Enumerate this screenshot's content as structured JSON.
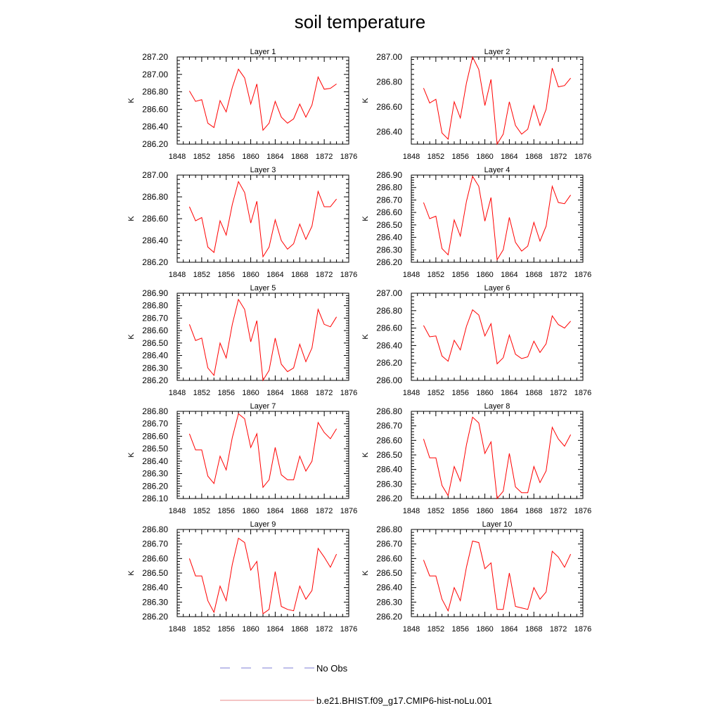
{
  "figure": {
    "title": "soil temperature",
    "legend": {
      "placement": "bottom-center",
      "entries": [
        {
          "label": "No Obs",
          "style": "dashed",
          "color": "#7f7fd6"
        },
        {
          "label": "b.e21.BHIST.f09_g17.CMIP6-hist-noLu.001",
          "style": "solid",
          "color": "#e88a8a"
        }
      ]
    }
  },
  "chart_data": [
    {
      "type": "line",
      "title": "Layer 1",
      "ylabel": "K",
      "xlim": [
        1848,
        1876
      ],
      "ylim": [
        286.2,
        287.2
      ],
      "xticks": [
        "1848",
        "1852",
        "1856",
        "1860",
        "1864",
        "1868",
        "1872",
        "1876"
      ],
      "yticks": [
        "286.20",
        "286.40",
        "286.60",
        "286.80",
        "287.00",
        "287.20"
      ],
      "series": [
        {
          "color": "#ff0000",
          "x": [
            1850,
            1851,
            1852,
            1853,
            1854,
            1855,
            1856,
            1857,
            1858,
            1859,
            1860,
            1861,
            1862,
            1863,
            1864,
            1865,
            1866,
            1867,
            1868,
            1869,
            1870,
            1871,
            1872,
            1873,
            1874
          ],
          "values": [
            286.81,
            286.69,
            286.71,
            286.44,
            286.39,
            286.7,
            286.57,
            286.85,
            287.06,
            286.96,
            286.66,
            286.89,
            286.36,
            286.44,
            286.69,
            286.51,
            286.44,
            286.49,
            286.66,
            286.51,
            286.65,
            286.97,
            286.83,
            286.84,
            286.89
          ]
        }
      ]
    },
    {
      "type": "line",
      "title": "Layer 2",
      "ylabel": "K",
      "xlim": [
        1848,
        1876
      ],
      "ylim": [
        286.3,
        287.0
      ],
      "xticks": [
        "1848",
        "1852",
        "1856",
        "1860",
        "1864",
        "1868",
        "1872",
        "1876"
      ],
      "yticks": [
        "286.40",
        "286.60",
        "286.80",
        "287.00"
      ],
      "series": [
        {
          "color": "#ff0000",
          "x": [
            1850,
            1851,
            1852,
            1853,
            1854,
            1855,
            1856,
            1857,
            1858,
            1859,
            1860,
            1861,
            1862,
            1863,
            1864,
            1865,
            1866,
            1867,
            1868,
            1869,
            1870,
            1871,
            1872,
            1873,
            1874
          ],
          "values": [
            286.75,
            286.63,
            286.66,
            286.39,
            286.34,
            286.64,
            286.51,
            286.79,
            287.0,
            286.9,
            286.61,
            286.82,
            286.3,
            286.38,
            286.64,
            286.45,
            286.38,
            286.42,
            286.61,
            286.45,
            286.58,
            286.91,
            286.76,
            286.77,
            286.83
          ]
        }
      ]
    },
    {
      "type": "line",
      "title": "Layer 3",
      "ylabel": "K",
      "xlim": [
        1848,
        1876
      ],
      "ylim": [
        286.2,
        287.0
      ],
      "xticks": [
        "1848",
        "1852",
        "1856",
        "1860",
        "1864",
        "1868",
        "1872",
        "1876"
      ],
      "yticks": [
        "286.20",
        "286.40",
        "286.60",
        "286.80",
        "287.00"
      ],
      "series": [
        {
          "color": "#ff0000",
          "x": [
            1850,
            1851,
            1852,
            1853,
            1854,
            1855,
            1856,
            1857,
            1858,
            1859,
            1860,
            1861,
            1862,
            1863,
            1864,
            1865,
            1866,
            1867,
            1868,
            1869,
            1870,
            1871,
            1872,
            1873,
            1874
          ],
          "values": [
            286.71,
            286.58,
            286.61,
            286.34,
            286.29,
            286.58,
            286.45,
            286.73,
            286.94,
            286.84,
            286.56,
            286.76,
            286.25,
            286.34,
            286.59,
            286.4,
            286.32,
            286.37,
            286.55,
            286.41,
            286.53,
            286.85,
            286.71,
            286.71,
            286.78
          ]
        }
      ]
    },
    {
      "type": "line",
      "title": "Layer 4",
      "ylabel": "K",
      "xlim": [
        1848,
        1876
      ],
      "ylim": [
        286.2,
        286.9
      ],
      "xticks": [
        "1848",
        "1852",
        "1856",
        "1860",
        "1864",
        "1868",
        "1872",
        "1876"
      ],
      "yticks": [
        "286.20",
        "286.30",
        "286.40",
        "286.50",
        "286.60",
        "286.70",
        "286.80",
        "286.90"
      ],
      "series": [
        {
          "color": "#ff0000",
          "x": [
            1850,
            1851,
            1852,
            1853,
            1854,
            1855,
            1856,
            1857,
            1858,
            1859,
            1860,
            1861,
            1862,
            1863,
            1864,
            1865,
            1866,
            1867,
            1868,
            1869,
            1870,
            1871,
            1872,
            1873,
            1874
          ],
          "values": [
            286.68,
            286.55,
            286.57,
            286.31,
            286.26,
            286.54,
            286.41,
            286.69,
            286.89,
            286.81,
            286.53,
            286.72,
            286.22,
            286.3,
            286.56,
            286.36,
            286.29,
            286.33,
            286.52,
            286.37,
            286.49,
            286.81,
            286.68,
            286.67,
            286.74
          ]
        }
      ]
    },
    {
      "type": "line",
      "title": "Layer 5",
      "ylabel": "K",
      "xlim": [
        1848,
        1876
      ],
      "ylim": [
        286.2,
        286.9
      ],
      "xticks": [
        "1848",
        "1852",
        "1856",
        "1860",
        "1864",
        "1868",
        "1872",
        "1876"
      ],
      "yticks": [
        "286.20",
        "286.30",
        "286.40",
        "286.50",
        "286.60",
        "286.70",
        "286.80",
        "286.90"
      ],
      "series": [
        {
          "color": "#ff0000",
          "x": [
            1850,
            1851,
            1852,
            1853,
            1854,
            1855,
            1856,
            1857,
            1858,
            1859,
            1860,
            1861,
            1862,
            1863,
            1864,
            1865,
            1866,
            1867,
            1868,
            1869,
            1870,
            1871,
            1872,
            1873,
            1874
          ],
          "values": [
            286.65,
            286.52,
            286.54,
            286.3,
            286.24,
            286.5,
            286.38,
            286.65,
            286.85,
            286.77,
            286.51,
            286.68,
            286.2,
            286.28,
            286.54,
            286.33,
            286.27,
            286.3,
            286.49,
            286.35,
            286.46,
            286.77,
            286.65,
            286.63,
            286.71
          ]
        }
      ]
    },
    {
      "type": "line",
      "title": "Layer 6",
      "ylabel": "K",
      "xlim": [
        1848,
        1876
      ],
      "ylim": [
        286.0,
        287.0
      ],
      "xticks": [
        "1848",
        "1852",
        "1856",
        "1860",
        "1864",
        "1868",
        "1872",
        "1876"
      ],
      "yticks": [
        "286.00",
        "286.20",
        "286.40",
        "286.60",
        "286.80",
        "287.00"
      ],
      "series": [
        {
          "color": "#ff0000",
          "x": [
            1850,
            1851,
            1852,
            1853,
            1854,
            1855,
            1856,
            1857,
            1858,
            1859,
            1860,
            1861,
            1862,
            1863,
            1864,
            1865,
            1866,
            1867,
            1868,
            1869,
            1870,
            1871,
            1872,
            1873,
            1874
          ],
          "values": [
            286.63,
            286.5,
            286.51,
            286.28,
            286.22,
            286.46,
            286.35,
            286.62,
            286.81,
            286.75,
            286.51,
            286.65,
            286.19,
            286.26,
            286.52,
            286.3,
            286.25,
            286.27,
            286.45,
            286.32,
            286.42,
            286.74,
            286.64,
            286.6,
            286.68
          ]
        }
      ]
    },
    {
      "type": "line",
      "title": "Layer 7",
      "ylabel": "K",
      "xlim": [
        1848,
        1876
      ],
      "ylim": [
        286.1,
        286.8
      ],
      "xticks": [
        "1848",
        "1852",
        "1856",
        "1860",
        "1864",
        "1868",
        "1872",
        "1876"
      ],
      "yticks": [
        "286.10",
        "286.20",
        "286.30",
        "286.40",
        "286.50",
        "286.60",
        "286.70",
        "286.80"
      ],
      "series": [
        {
          "color": "#ff0000",
          "x": [
            1850,
            1851,
            1852,
            1853,
            1854,
            1855,
            1856,
            1857,
            1858,
            1859,
            1860,
            1861,
            1862,
            1863,
            1864,
            1865,
            1866,
            1867,
            1868,
            1869,
            1870,
            1871,
            1872,
            1873,
            1874
          ],
          "values": [
            286.62,
            286.49,
            286.49,
            286.28,
            286.22,
            286.44,
            286.33,
            286.59,
            286.78,
            286.74,
            286.51,
            286.62,
            286.19,
            286.25,
            286.51,
            286.29,
            286.25,
            286.25,
            286.44,
            286.32,
            286.4,
            286.71,
            286.63,
            286.58,
            286.66
          ]
        }
      ]
    },
    {
      "type": "line",
      "title": "Layer 8",
      "ylabel": "K",
      "xlim": [
        1848,
        1876
      ],
      "ylim": [
        286.2,
        286.8
      ],
      "xticks": [
        "1848",
        "1852",
        "1856",
        "1860",
        "1864",
        "1868",
        "1872",
        "1876"
      ],
      "yticks": [
        "286.20",
        "286.30",
        "286.40",
        "286.50",
        "286.60",
        "286.70",
        "286.80"
      ],
      "series": [
        {
          "color": "#ff0000",
          "x": [
            1850,
            1851,
            1852,
            1853,
            1854,
            1855,
            1856,
            1857,
            1858,
            1859,
            1860,
            1861,
            1862,
            1863,
            1864,
            1865,
            1866,
            1867,
            1868,
            1869,
            1870,
            1871,
            1872,
            1873,
            1874
          ],
          "values": [
            286.61,
            286.48,
            286.48,
            286.29,
            286.22,
            286.42,
            286.32,
            286.57,
            286.76,
            286.72,
            286.51,
            286.59,
            286.2,
            286.25,
            286.51,
            286.28,
            286.24,
            286.24,
            286.42,
            286.31,
            286.39,
            286.69,
            286.61,
            286.56,
            286.64
          ]
        }
      ]
    },
    {
      "type": "line",
      "title": "Layer 9",
      "ylabel": "K",
      "xlim": [
        1848,
        1876
      ],
      "ylim": [
        286.2,
        286.8
      ],
      "xticks": [
        "1848",
        "1852",
        "1856",
        "1860",
        "1864",
        "1868",
        "1872",
        "1876"
      ],
      "yticks": [
        "286.20",
        "286.30",
        "286.40",
        "286.50",
        "286.60",
        "286.70",
        "286.80"
      ],
      "series": [
        {
          "color": "#ff0000",
          "x": [
            1850,
            1851,
            1852,
            1853,
            1854,
            1855,
            1856,
            1857,
            1858,
            1859,
            1860,
            1861,
            1862,
            1863,
            1864,
            1865,
            1866,
            1867,
            1868,
            1869,
            1870,
            1871,
            1872,
            1873,
            1874
          ],
          "values": [
            286.6,
            286.48,
            286.48,
            286.31,
            286.23,
            286.41,
            286.31,
            286.56,
            286.74,
            286.71,
            286.52,
            286.58,
            286.22,
            286.25,
            286.51,
            286.27,
            286.25,
            286.24,
            286.41,
            286.32,
            286.38,
            286.67,
            286.61,
            286.54,
            286.63
          ]
        }
      ]
    },
    {
      "type": "line",
      "title": "Layer 10",
      "ylabel": "K",
      "xlim": [
        1848,
        1876
      ],
      "ylim": [
        286.2,
        286.8
      ],
      "xticks": [
        "1848",
        "1852",
        "1856",
        "1860",
        "1864",
        "1868",
        "1872",
        "1876"
      ],
      "yticks": [
        "286.20",
        "286.30",
        "286.40",
        "286.50",
        "286.60",
        "286.70",
        "286.80"
      ],
      "series": [
        {
          "color": "#ff0000",
          "x": [
            1850,
            1851,
            1852,
            1853,
            1854,
            1855,
            1856,
            1857,
            1858,
            1859,
            1860,
            1861,
            1862,
            1863,
            1864,
            1865,
            1866,
            1867,
            1868,
            1869,
            1870,
            1871,
            1872,
            1873,
            1874
          ],
          "values": [
            286.59,
            286.48,
            286.48,
            286.32,
            286.24,
            286.4,
            286.31,
            286.54,
            286.72,
            286.71,
            286.53,
            286.57,
            286.25,
            286.25,
            286.5,
            286.27,
            286.26,
            286.25,
            286.4,
            286.32,
            286.37,
            286.65,
            286.61,
            286.54,
            286.63
          ]
        }
      ]
    }
  ]
}
